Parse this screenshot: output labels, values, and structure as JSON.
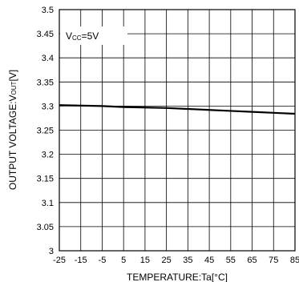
{
  "chart_data": {
    "type": "line",
    "title": "",
    "xlabel": "TEMPERATURE:Ta[°C]",
    "ylabel": {
      "prefix": "OUTPUT VOLTAGE:V",
      "subscript": "OUT",
      "suffix": "[V]"
    },
    "annotation": {
      "main": "V",
      "subscript": "CC",
      "suffix": "=5V"
    },
    "xlim": [
      -25,
      85
    ],
    "ylim": [
      3,
      3.5
    ],
    "xticks": [
      -25,
      -15,
      -5,
      5,
      15,
      25,
      35,
      45,
      55,
      65,
      75,
      85
    ],
    "xtick_labels": [
      "-25",
      "-15",
      "-5",
      "5",
      "15",
      "25",
      "35",
      "45",
      "55",
      "65",
      "75",
      "85"
    ],
    "yticks": [
      3,
      3.05,
      3.1,
      3.15,
      3.2,
      3.25,
      3.3,
      3.35,
      3.4,
      3.45,
      3.5
    ],
    "ytick_labels": [
      "3",
      "3.05",
      "3.1",
      "3.15",
      "3.2",
      "3.25",
      "3.3",
      "3.35",
      "3.4",
      "3.45",
      "3.5"
    ],
    "grid": true,
    "series": [
      {
        "x": [
          -25,
          -5,
          5,
          25,
          35,
          45,
          55,
          65,
          75,
          85
        ],
        "y": [
          3.302,
          3.3,
          3.298,
          3.296,
          3.294,
          3.292,
          3.29,
          3.288,
          3.286,
          3.284
        ],
        "color": "#000000"
      }
    ]
  }
}
